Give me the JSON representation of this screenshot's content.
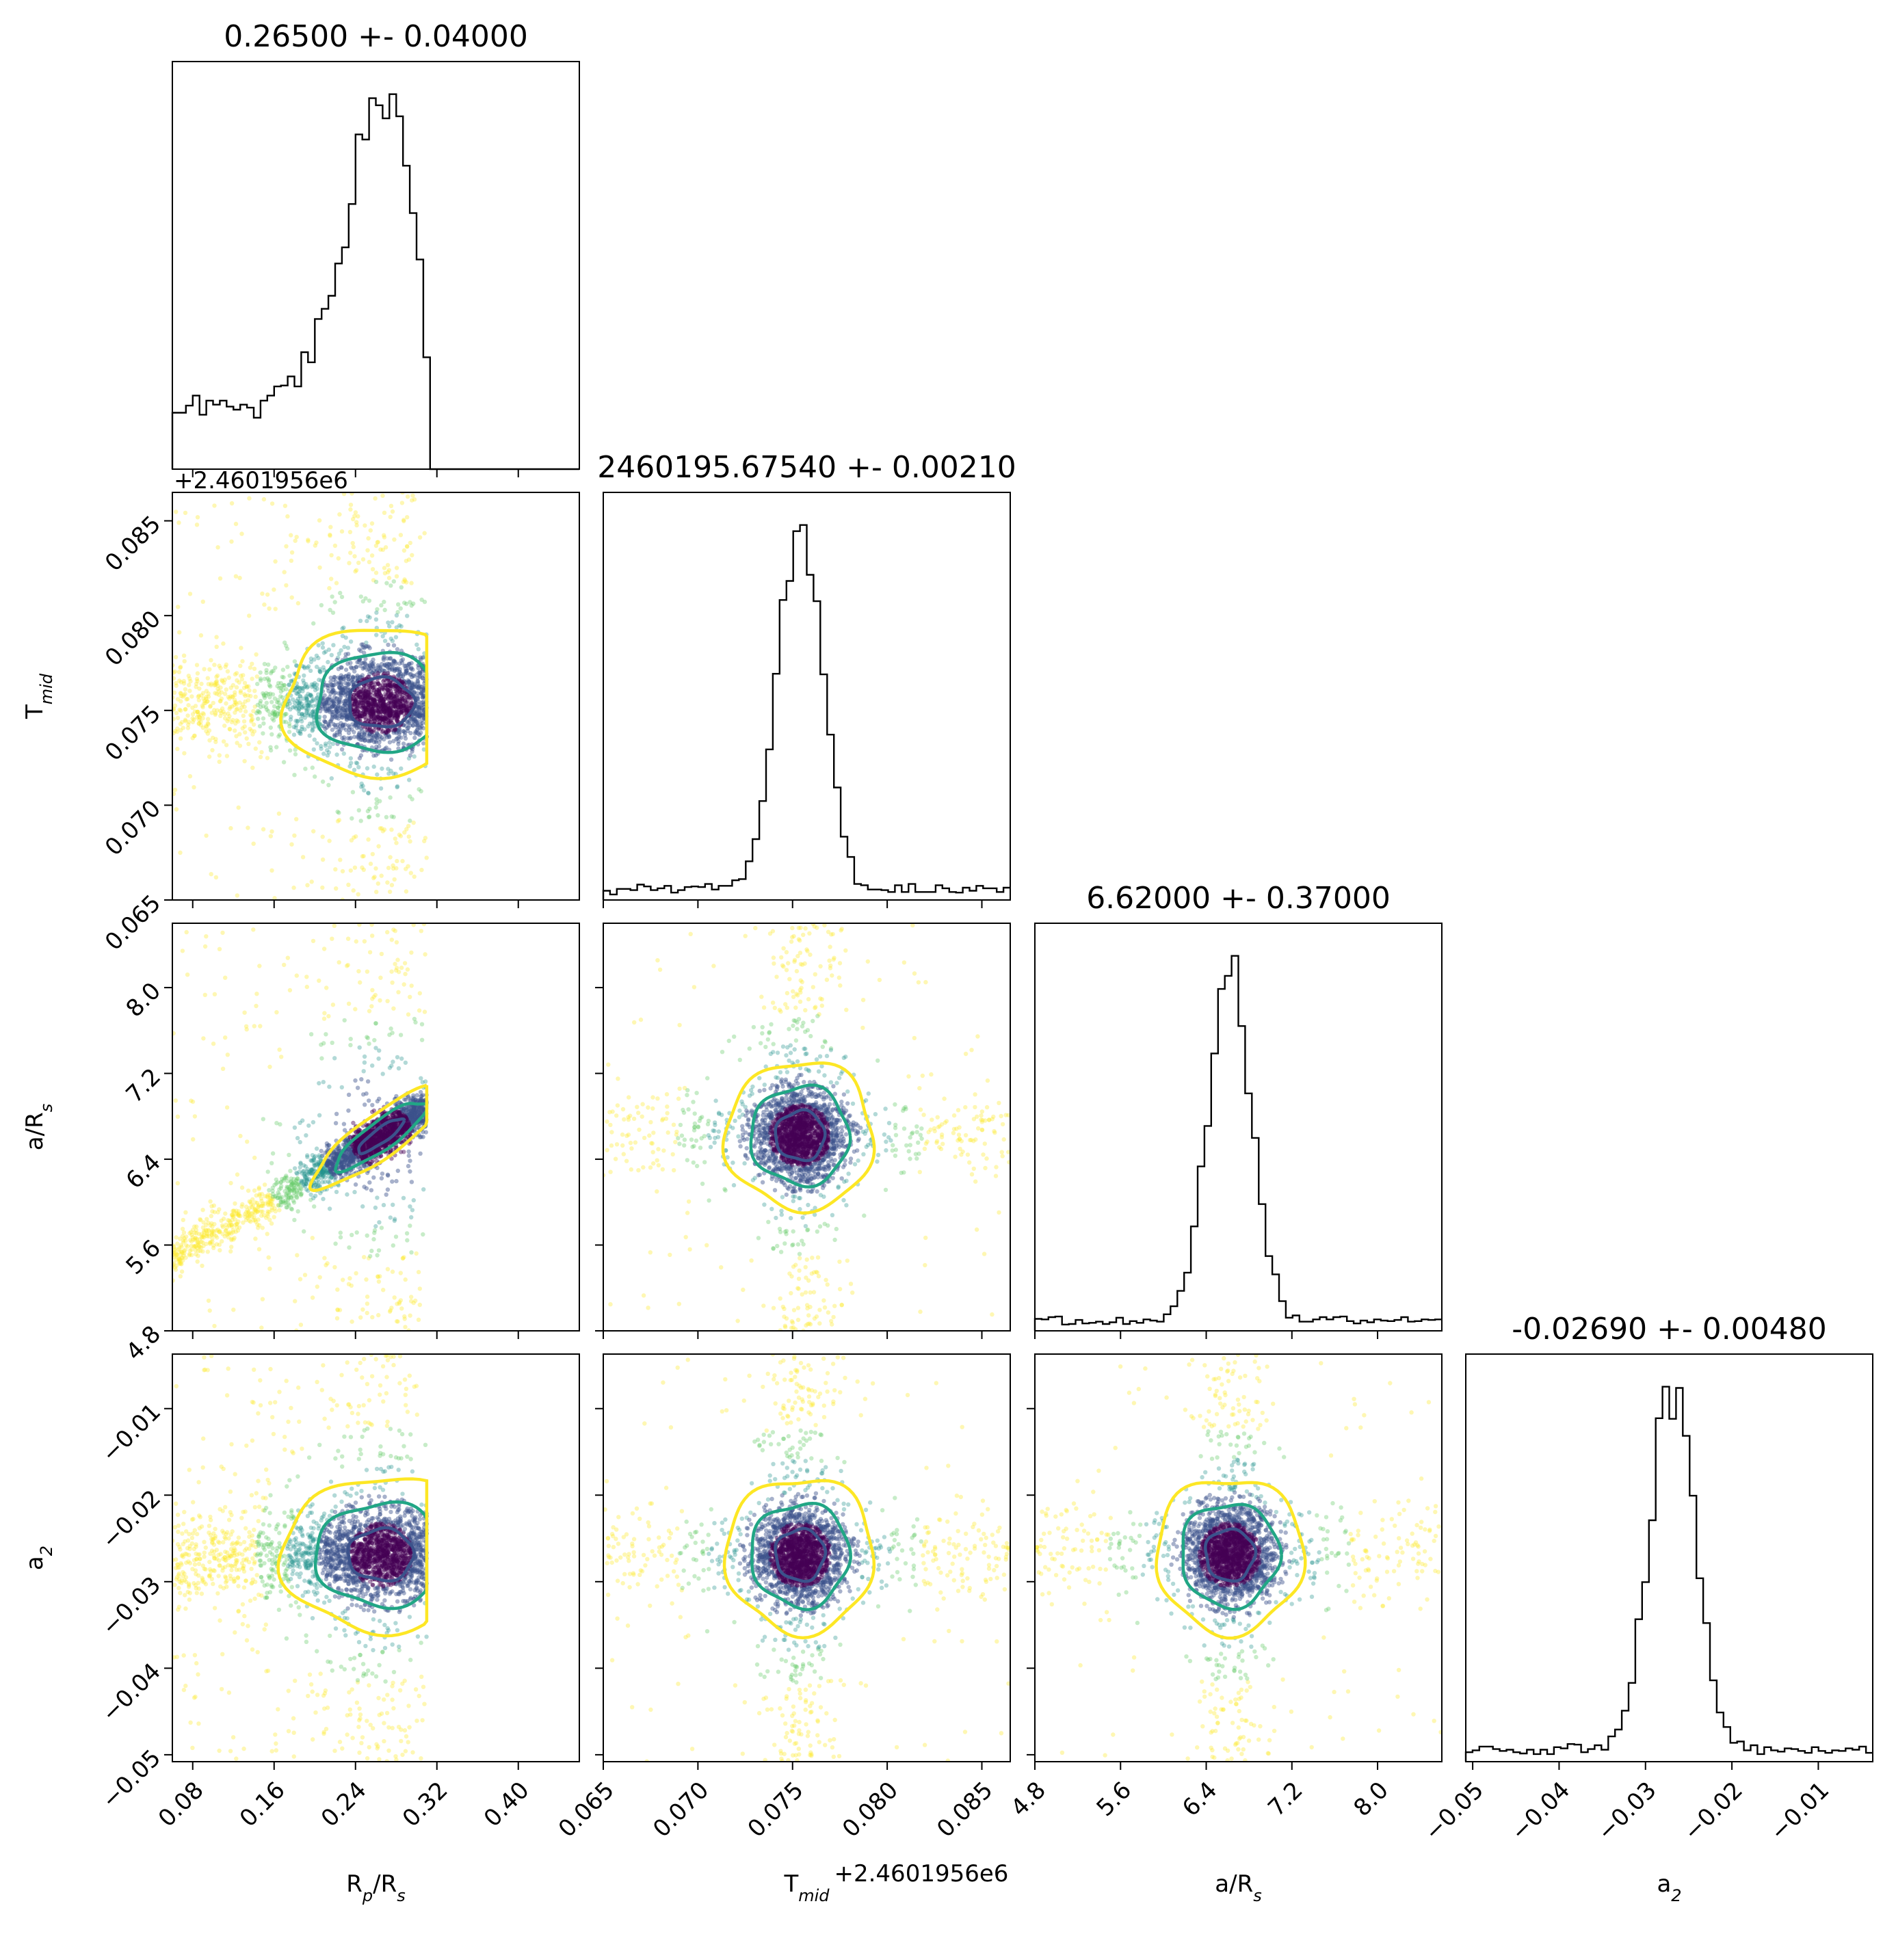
{
  "chart_data": {
    "type": "corner",
    "parameters": [
      {
        "key": "rp",
        "label": "R",
        "label_sub": "p",
        "label_tail": "/R",
        "label_sub2": "s",
        "range": [
          0.06,
          0.46
        ],
        "ticks": [
          0.08,
          0.16,
          0.24,
          0.32,
          0.4
        ],
        "tick_labels": [
          "0.08",
          "0.16",
          "0.24",
          "0.32",
          "0.40"
        ],
        "offset": ""
      },
      {
        "key": "tmid",
        "label": "T",
        "label_sub": "mid",
        "label_tail": "",
        "label_sub2": "",
        "range": [
          0.065,
          0.0865
        ],
        "ticks": [
          0.065,
          0.07,
          0.075,
          0.08,
          0.085
        ],
        "tick_labels": [
          "0.065",
          "0.070",
          "0.075",
          "0.080",
          "0.085"
        ],
        "offset": "+2.4601956e6"
      },
      {
        "key": "ars",
        "label": "a/R",
        "label_sub": "s",
        "label_tail": "",
        "label_sub2": "",
        "range": [
          4.8,
          8.6
        ],
        "ticks": [
          4.8,
          5.6,
          6.4,
          7.2,
          8.0
        ],
        "tick_labels": [
          "4.8",
          "5.6",
          "6.4",
          "7.2",
          "8.0"
        ],
        "offset": ""
      },
      {
        "key": "a2",
        "label": "a",
        "label_sub": "2",
        "label_tail": "",
        "label_sub2": "",
        "range": [
          -0.0508,
          -0.0037
        ],
        "ticks": [
          -0.05,
          -0.04,
          -0.03,
          -0.02,
          -0.01
        ],
        "tick_labels": [
          "−0.05",
          "−0.04",
          "−0.03",
          "−0.02",
          "−0.01"
        ],
        "offset": ""
      }
    ],
    "titles": [
      "0.26500 +- 0.04000",
      "2460195.67540 +- 0.00210",
      "6.62000 +- 0.37000",
      "-0.02690 +- 0.00480"
    ],
    "posteriors": [
      {
        "mean": 0.265,
        "std": 0.04,
        "upper_cut": 0.31,
        "lower_tail": true
      },
      {
        "mean": 0.0754,
        "std": 0.0021
      },
      {
        "mean": 6.62,
        "std": 0.37
      },
      {
        "mean": -0.0269,
        "std": 0.0048
      }
    ],
    "contour_colors": [
      "#3b528b",
      "#21a685",
      "#fde725"
    ],
    "scatter_colormap": "viridis",
    "grid": false,
    "legend": "none"
  }
}
